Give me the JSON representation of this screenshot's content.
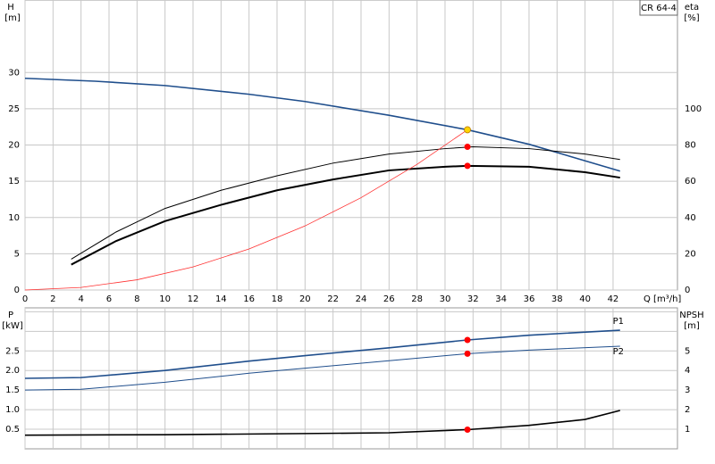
{
  "chart_data": [
    {
      "type": "line",
      "title": "CR 64-4",
      "ylabel": "H",
      "yunit": "[m]",
      "y2label": "eta",
      "y2unit": "[%]",
      "xlabel": "Q [m³/h]",
      "xlim": [
        0,
        46.6
      ],
      "xticks": [
        0,
        2,
        4,
        6,
        8,
        10,
        12,
        14,
        16,
        18,
        20,
        22,
        24,
        26,
        28,
        30,
        32,
        34,
        36,
        38,
        40,
        42
      ],
      "ylim": [
        0,
        40
      ],
      "yticks": [
        0,
        5,
        10,
        15,
        20,
        25,
        30
      ],
      "y2lim": [
        0,
        160
      ],
      "y2ticks": [
        0,
        20,
        40,
        60,
        80,
        100
      ],
      "grid": true,
      "series": [
        {
          "color": "#1f4e8c",
          "line_width": 1.6,
          "x": [
            0,
            5,
            10,
            16,
            20,
            26,
            31.6,
            36,
            42.5
          ],
          "values": [
            29.2,
            28.8,
            28.2,
            27,
            26,
            24.1,
            22.1,
            20.1,
            16.4
          ]
        },
        {
          "color": "#000000",
          "line_width": 1,
          "axis": "y2",
          "x": [
            3.3,
            6.5,
            10,
            14,
            18,
            22,
            26,
            30,
            32,
            36,
            40,
            42.5
          ],
          "values": [
            17,
            32,
            45,
            55,
            63,
            70,
            75,
            78,
            79,
            78,
            75,
            72
          ]
        },
        {
          "color": "#000000",
          "line_width": 2,
          "axis": "y2",
          "x": [
            3.3,
            6.5,
            10,
            14,
            18,
            22,
            26,
            30,
            31.6,
            36,
            40,
            42.5
          ],
          "values": [
            14,
            27,
            38,
            47,
            55,
            61,
            66,
            68,
            68.5,
            68,
            65,
            62
          ]
        },
        {
          "color": "#ff3030",
          "line_width": 0.8,
          "x": [
            0,
            4,
            8,
            12,
            16,
            20,
            24,
            28,
            31.6
          ],
          "values": [
            0,
            0.35,
            1.41,
            3.18,
            5.66,
            8.84,
            12.73,
            17.33,
            22.1
          ]
        }
      ],
      "markers": [
        {
          "x": 31.6,
          "y": 22.1,
          "color": "#ffd400"
        },
        {
          "x": 31.6,
          "y": 79,
          "color": "#ff0000",
          "axis": "y2"
        },
        {
          "x": 31.6,
          "y": 68.5,
          "color": "#ff0000",
          "axis": "y2"
        }
      ]
    },
    {
      "type": "line",
      "ylabel": "P",
      "yunit": "[kW]",
      "y2label": "NPSH",
      "y2unit": "[m]",
      "xlim": [
        0,
        46.6
      ],
      "ylim": [
        0,
        3.6
      ],
      "yticks": [
        0.5,
        {
          "value": 1,
          "label": "1.0"
        },
        1.5,
        {
          "value": 2,
          "label": "2.0"
        },
        2.5
      ],
      "y2lim": [
        0,
        7.2
      ],
      "y2ticks": [
        1,
        2,
        3,
        4,
        5
      ],
      "gridticks": [
        0.5,
        1,
        1.5,
        2,
        2.5,
        3,
        3.5
      ],
      "grid": true,
      "series": [
        {
          "name": "P1",
          "color": "#1f4e8c",
          "line_width": 1.6,
          "x": [
            0,
            4,
            10,
            16,
            20,
            26,
            31.6,
            36,
            42.5
          ],
          "values": [
            1.8,
            1.82,
            2,
            2.24,
            2.38,
            2.58,
            2.78,
            2.9,
            3.03
          ]
        },
        {
          "name": "P2",
          "color": "#1f4e8c",
          "line_width": 1,
          "x": [
            0,
            4,
            10,
            16,
            20,
            26,
            31.6,
            36,
            42.5
          ],
          "values": [
            1.5,
            1.52,
            1.7,
            1.93,
            2.06,
            2.25,
            2.43,
            2.52,
            2.62
          ]
        },
        {
          "color": "#000000",
          "line_width": 1.6,
          "axis": "y2",
          "x": [
            0,
            10,
            20,
            26,
            31.6,
            36,
            40,
            42.5
          ],
          "values": [
            0.7,
            0.72,
            0.78,
            0.82,
            0.98,
            1.2,
            1.5,
            1.96
          ]
        }
      ],
      "markers": [
        {
          "x": 31.6,
          "y": 2.78,
          "color": "#ff0000"
        },
        {
          "x": 31.6,
          "y": 2.43,
          "color": "#ff0000"
        },
        {
          "x": 31.6,
          "y": 0.98,
          "color": "#ff0000",
          "axis": "y2"
        }
      ]
    }
  ]
}
